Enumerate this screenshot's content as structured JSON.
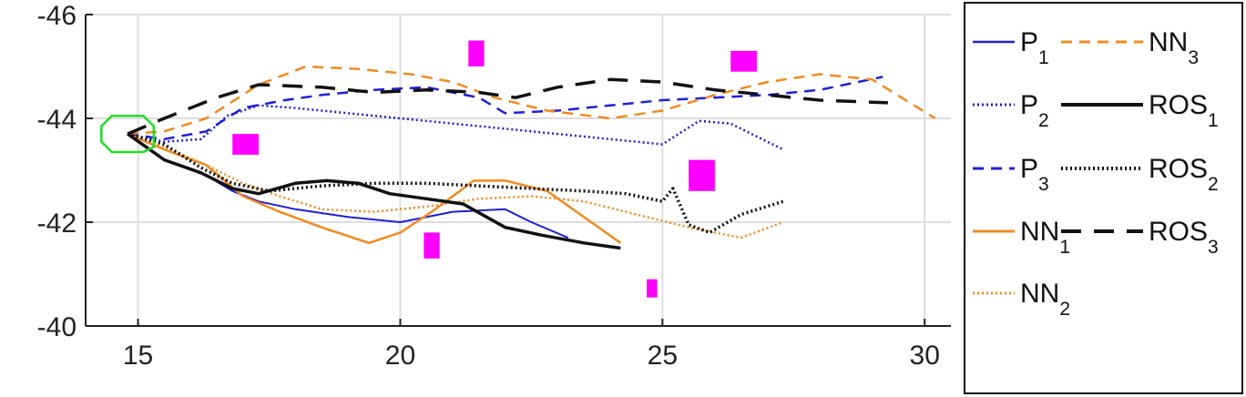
{
  "chart_data": {
    "type": "line",
    "xlim": [
      14,
      30.5
    ],
    "ylim": [
      -46,
      -40
    ],
    "xticks": [
      15,
      20,
      25,
      30
    ],
    "yticks": [
      -46,
      -44,
      -42,
      -40
    ],
    "xtick_labels": [
      "15",
      "20",
      "25",
      "30"
    ],
    "ytick_labels": [
      "-46",
      "-44",
      "-42",
      "-40"
    ],
    "grid": true,
    "legend_placement": "outside-right",
    "colors": {
      "P": "#1f1fd6",
      "NN": "#f28a20",
      "ROS": "#111111",
      "obstacle": "#ff00ff",
      "start": "#22dd22"
    },
    "start_region": [
      [
        14.5,
        -44.05
      ],
      [
        15.1,
        -44.05
      ],
      [
        15.3,
        -43.85
      ],
      [
        15.3,
        -43.45
      ],
      [
        15.1,
        -43.35
      ],
      [
        14.5,
        -43.35
      ],
      [
        14.3,
        -43.55
      ],
      [
        14.3,
        -43.85
      ]
    ],
    "obstacles": [
      {
        "x": [
          21.3,
          21.6
        ],
        "y": [
          -45.5,
          -45.0
        ]
      },
      {
        "x": [
          26.3,
          26.8
        ],
        "y": [
          -45.3,
          -44.9
        ]
      },
      {
        "x": [
          16.8,
          17.3
        ],
        "y": [
          -43.7,
          -43.3
        ]
      },
      {
        "x": [
          25.5,
          26.0
        ],
        "y": [
          -43.2,
          -42.6
        ]
      },
      {
        "x": [
          20.45,
          20.75
        ],
        "y": [
          -41.8,
          -41.3
        ]
      },
      {
        "x": [
          24.7,
          24.9
        ],
        "y": [
          -40.9,
          -40.55
        ]
      }
    ],
    "series": [
      {
        "name": "P",
        "sub": "1",
        "color": "#1f1fd6",
        "dash": "solid",
        "width": 2,
        "x": [
          14.8,
          15.5,
          16.3,
          16.8,
          17.3,
          18,
          19,
          20,
          21,
          22,
          22.5,
          23.2
        ],
        "y": [
          -43.7,
          -43.2,
          -42.9,
          -42.6,
          -42.4,
          -42.25,
          -42.1,
          -42.0,
          -42.2,
          -42.25,
          -42.0,
          -41.7
        ]
      },
      {
        "name": "P",
        "sub": "2",
        "color": "#1f1fd6",
        "dash": "dotted",
        "width": 2.5,
        "x": [
          14.8,
          15.5,
          16.2,
          16.7,
          17.3,
          18,
          19,
          20,
          21,
          22,
          23,
          24,
          25,
          25.7,
          26.3,
          27.3
        ],
        "y": [
          -43.7,
          -43.55,
          -43.6,
          -44.05,
          -44.25,
          -44.2,
          -44.1,
          -44.0,
          -43.9,
          -43.8,
          -43.7,
          -43.6,
          -43.5,
          -43.95,
          -43.9,
          -43.4
        ]
      },
      {
        "name": "P",
        "sub": "3",
        "color": "#1f1fd6",
        "dash": "dashed",
        "width": 2.5,
        "x": [
          14.8,
          15.5,
          16.3,
          17,
          17.8,
          18.5,
          19.5,
          20.5,
          21.5,
          22,
          23,
          24,
          25,
          26,
          27,
          28,
          29.2
        ],
        "y": [
          -43.7,
          -43.6,
          -43.75,
          -44.2,
          -44.35,
          -44.45,
          -44.55,
          -44.6,
          -44.4,
          -44.1,
          -44.15,
          -44.25,
          -44.35,
          -44.4,
          -44.45,
          -44.55,
          -44.8
        ]
      },
      {
        "name": "NN",
        "sub": "1",
        "color": "#f28a20",
        "dash": "solid",
        "width": 2.5,
        "x": [
          14.8,
          15.5,
          16.3,
          17,
          17.7,
          18.5,
          19.4,
          20,
          20.6,
          21.4,
          22,
          22.8,
          24.2
        ],
        "y": [
          -43.7,
          -43.4,
          -43.1,
          -42.5,
          -42.2,
          -41.9,
          -41.6,
          -41.8,
          -42.2,
          -42.8,
          -42.8,
          -42.6,
          -41.6
        ]
      },
      {
        "name": "NN",
        "sub": "2",
        "color": "#f28a20",
        "dash": "dotted",
        "width": 2.5,
        "x": [
          14.8,
          15.5,
          16.3,
          17,
          17.7,
          18.5,
          19.5,
          20.5,
          21.5,
          22.5,
          23.5,
          24.5,
          25.5,
          26.5,
          27.3
        ],
        "y": [
          -43.7,
          -43.45,
          -43.1,
          -42.75,
          -42.5,
          -42.25,
          -42.2,
          -42.3,
          -42.45,
          -42.5,
          -42.4,
          -42.15,
          -41.9,
          -41.7,
          -42.0
        ]
      },
      {
        "name": "NN",
        "sub": "3",
        "color": "#f28a20",
        "dash": "dashed",
        "width": 2.5,
        "x": [
          14.8,
          15.5,
          16.3,
          17.3,
          18.2,
          19.2,
          20.2,
          21,
          21.8,
          22.8,
          24,
          25,
          26,
          27,
          28,
          29,
          30.2
        ],
        "y": [
          -43.7,
          -43.75,
          -44.0,
          -44.65,
          -45.0,
          -44.95,
          -44.85,
          -44.7,
          -44.4,
          -44.15,
          -44.0,
          -44.15,
          -44.45,
          -44.7,
          -44.85,
          -44.75,
          -44.0
        ]
      },
      {
        "name": "ROS",
        "sub": "1",
        "color": "#111111",
        "dash": "solid",
        "width": 3.5,
        "x": [
          14.8,
          15.5,
          16.2,
          16.8,
          17.3,
          18,
          18.6,
          19.2,
          19.8,
          20.5,
          21.2,
          22,
          22.7,
          23.5,
          24.2
        ],
        "y": [
          -43.7,
          -43.2,
          -42.95,
          -42.65,
          -42.55,
          -42.75,
          -42.8,
          -42.75,
          -42.55,
          -42.45,
          -42.35,
          -41.9,
          -41.75,
          -41.6,
          -41.5
        ]
      },
      {
        "name": "ROS",
        "sub": "2",
        "color": "#111111",
        "dash": "dotted",
        "width": 3.5,
        "x": [
          14.8,
          15.5,
          16.2,
          16.8,
          17.5,
          18.5,
          19.5,
          20.5,
          21.5,
          22.5,
          23.5,
          24.3,
          25,
          25.2,
          25.5,
          25.9,
          26.5,
          27.3
        ],
        "y": [
          -43.7,
          -43.5,
          -43.05,
          -42.75,
          -42.6,
          -42.7,
          -42.75,
          -42.75,
          -42.7,
          -42.65,
          -42.6,
          -42.55,
          -42.4,
          -42.65,
          -41.95,
          -41.8,
          -42.15,
          -42.4
        ]
      },
      {
        "name": "ROS",
        "sub": "3",
        "color": "#111111",
        "dash": "longdash",
        "width": 3.5,
        "x": [
          14.8,
          15.5,
          16.5,
          17.3,
          18.5,
          19.5,
          20.5,
          21.5,
          22.2,
          23,
          24,
          25,
          26,
          27,
          28,
          29.3
        ],
        "y": [
          -43.7,
          -44.0,
          -44.4,
          -44.65,
          -44.6,
          -44.5,
          -44.55,
          -44.5,
          -44.4,
          -44.6,
          -44.75,
          -44.7,
          -44.55,
          -44.45,
          -44.35,
          -44.3
        ]
      }
    ]
  }
}
